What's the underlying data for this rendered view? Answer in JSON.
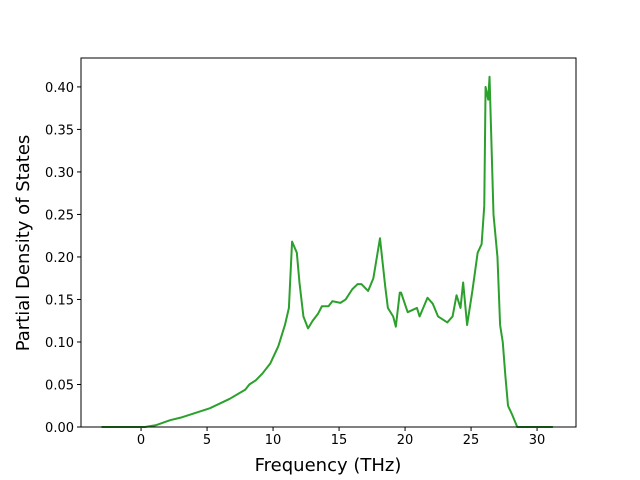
{
  "chart_data": {
    "type": "line",
    "x_label": "Frequency (THz)",
    "y_label": "Partial Density of States",
    "x": [
      -3.0,
      0.3,
      1.1,
      2.2,
      3.0,
      5.2,
      6.7,
      7.9,
      8.2,
      8.7,
      9.2,
      9.8,
      10.4,
      10.9,
      11.2,
      11.44,
      11.8,
      12.0,
      12.3,
      12.65,
      13.0,
      13.4,
      13.7,
      14.2,
      14.5,
      15.1,
      15.5,
      16.0,
      16.4,
      16.7,
      17.2,
      17.6,
      18.1,
      18.5,
      18.7,
      19.1,
      19.3,
      19.6,
      19.7,
      20.2,
      20.9,
      21.1,
      21.7,
      22.1,
      22.5,
      23.2,
      23.6,
      23.9,
      24.2,
      24.4,
      24.7,
      25.1,
      25.5,
      25.8,
      26.0,
      26.1,
      26.3,
      26.4,
      26.7,
      27.0,
      27.2,
      27.4,
      27.6,
      27.8,
      28.1,
      28.5,
      31.2
    ],
    "series": [
      {
        "color": "#2ca02c",
        "values": [
          0,
          0,
          0.002,
          0.008,
          0.011,
          0.022,
          0.033,
          0.044,
          0.05,
          0.055,
          0.063,
          0.075,
          0.095,
          0.12,
          0.14,
          0.218,
          0.205,
          0.17,
          0.13,
          0.116,
          0.125,
          0.133,
          0.142,
          0.142,
          0.148,
          0.146,
          0.15,
          0.162,
          0.168,
          0.168,
          0.16,
          0.175,
          0.222,
          0.165,
          0.14,
          0.13,
          0.118,
          0.158,
          0.158,
          0.135,
          0.14,
          0.13,
          0.152,
          0.145,
          0.13,
          0.123,
          0.13,
          0.155,
          0.14,
          0.17,
          0.12,
          0.16,
          0.205,
          0.215,
          0.26,
          0.4,
          0.385,
          0.412,
          0.25,
          0.2,
          0.12,
          0.1,
          0.06,
          0.025,
          0.015,
          0,
          0
        ]
      }
    ],
    "xlim": [
      -4.55,
      32.95
    ],
    "ylim": [
      0,
      0.434
    ],
    "xticks": [
      0,
      5,
      10,
      15,
      20,
      25,
      30
    ],
    "yticks": [
      {
        "value": 0,
        "label": "0.00"
      },
      {
        "value": 0.05,
        "label": "0.05"
      },
      {
        "value": 0.1,
        "label": "0.10"
      },
      {
        "value": 0.15,
        "label": "0.15"
      },
      {
        "value": 0.2,
        "label": "0.20"
      },
      {
        "value": 0.25,
        "label": "0.25"
      },
      {
        "value": 0.3,
        "label": "0.30"
      },
      {
        "value": 0.35,
        "label": "0.35"
      },
      {
        "value": 0.4,
        "label": "0.40"
      }
    ]
  }
}
